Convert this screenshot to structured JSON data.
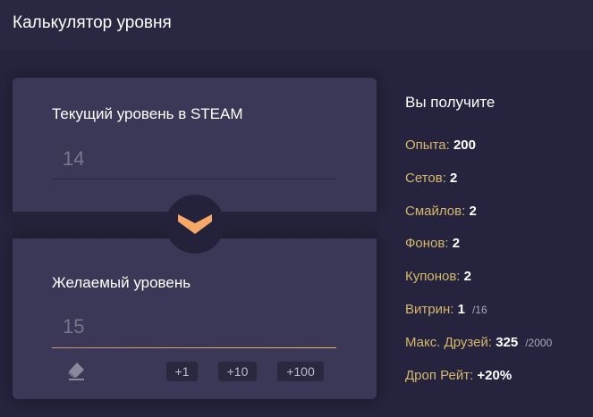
{
  "header": {
    "title": "Калькулятор уровня"
  },
  "current": {
    "label": "Текущий уровень в STEAM",
    "value": "14"
  },
  "desired": {
    "label": "Желаемый уровень",
    "value": "15",
    "buttons": [
      "+1",
      "+10",
      "+100"
    ]
  },
  "colors": {
    "accent": "#f6a967",
    "label": "#d6b86c"
  },
  "icons": {
    "toggle": "chevron-down-icon",
    "clear": "eraser-icon"
  },
  "results": {
    "title": "Вы получите",
    "rows": [
      {
        "label": "Опыта:",
        "value": "200"
      },
      {
        "label": "Сетов:",
        "value": "2"
      },
      {
        "label": "Смайлов:",
        "value": "2"
      },
      {
        "label": "Фонов:",
        "value": "2"
      },
      {
        "label": "Купонов:",
        "value": "2"
      },
      {
        "label": "Витрин:",
        "value": "1",
        "max": "/16"
      },
      {
        "label": "Макс. Друзей:",
        "value": "325",
        "max": "/2000"
      },
      {
        "label": "Дроп Рейт:",
        "value": "+20%"
      }
    ]
  }
}
